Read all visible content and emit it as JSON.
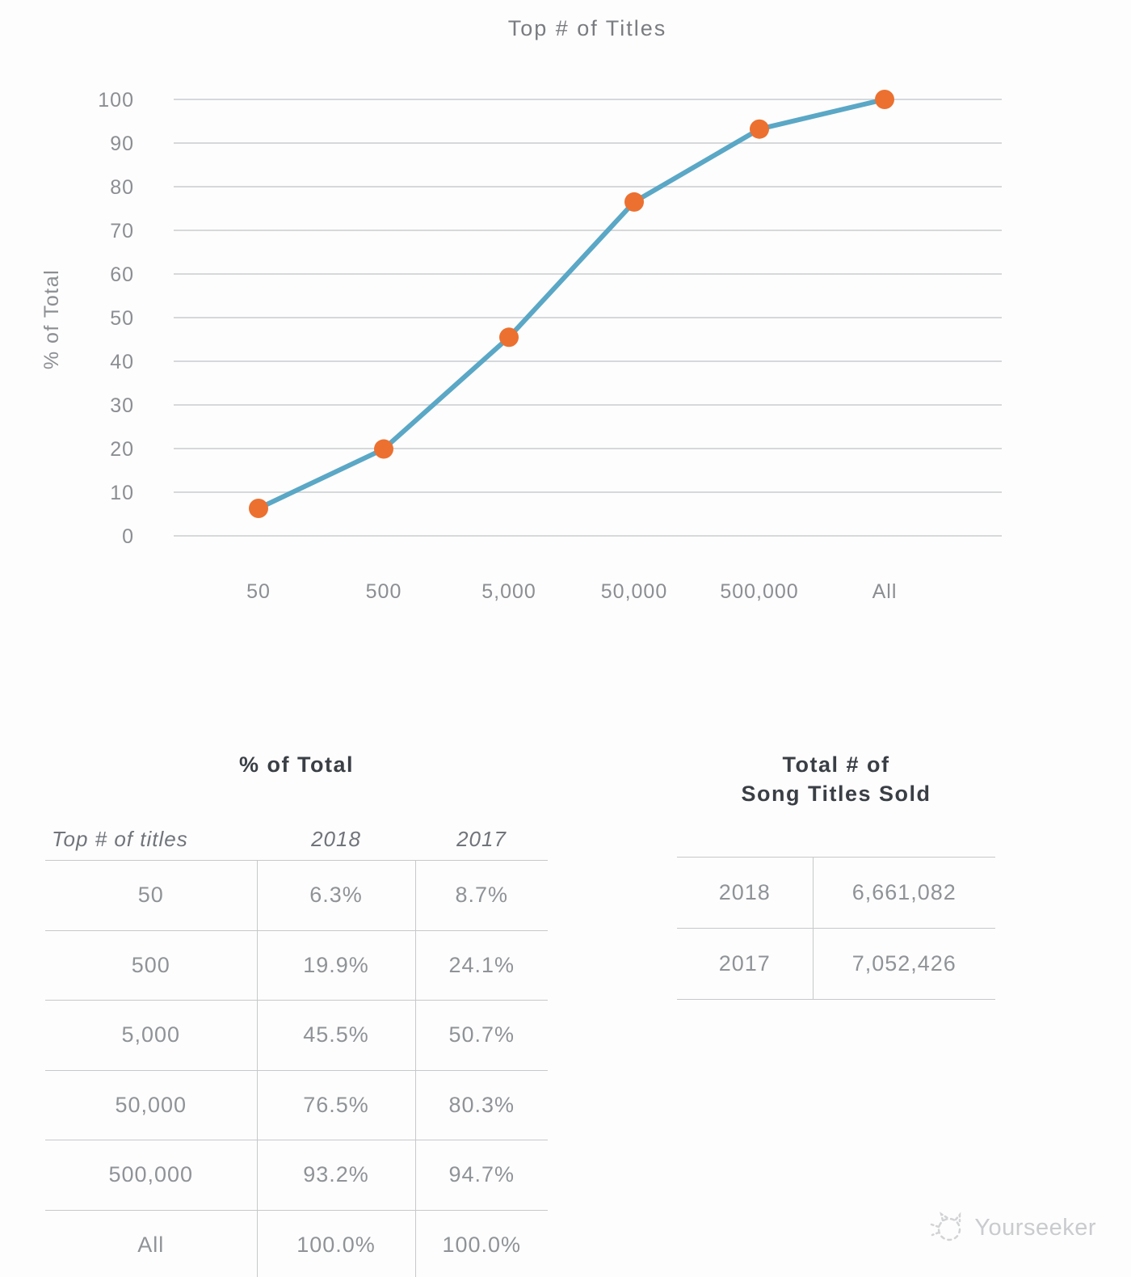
{
  "chart_data": {
    "type": "line",
    "title": "Top # of Titles",
    "ylabel": "% of Total",
    "xlabel": "",
    "categories": [
      "50",
      "500",
      "5,000",
      "50,000",
      "500,000",
      "All"
    ],
    "series": [
      {
        "name": "2018",
        "values": [
          6.3,
          19.9,
          45.5,
          76.5,
          93.2,
          100.0
        ]
      }
    ],
    "ylim": [
      0,
      100
    ],
    "ytick_step": 10,
    "grid": "horizontal",
    "legend_position": "none",
    "line_color": "#5aa7c6",
    "marker_color": "#ec7030"
  },
  "tables": {
    "percent_of_total": {
      "title": "% of Total",
      "columns": [
        "Top # of titles",
        "2018",
        "2017"
      ],
      "rows": [
        [
          "50",
          "6.3%",
          "8.7%"
        ],
        [
          "500",
          "19.9%",
          "24.1%"
        ],
        [
          "5,000",
          "45.5%",
          "50.7%"
        ],
        [
          "50,000",
          "76.5%",
          "80.3%"
        ],
        [
          "500,000",
          "93.2%",
          "94.7%"
        ],
        [
          "All",
          "100.0%",
          "100.0%"
        ]
      ]
    },
    "titles_sold": {
      "title_line1": "Total # of",
      "title_line2": "Song Titles Sold",
      "rows": [
        [
          "2018",
          "6,661,082"
        ],
        [
          "2017",
          "7,052,426"
        ]
      ]
    }
  },
  "watermark": {
    "text": "Yourseeker"
  },
  "colors": {
    "line": "#5aa7c6",
    "marker": "#ec7030",
    "gridline": "#d6d8da",
    "axis_text": "#8b8e92",
    "table_line": "#c6c8cb",
    "table_text": "#8f9397",
    "heading_text": "#3a3f46"
  }
}
